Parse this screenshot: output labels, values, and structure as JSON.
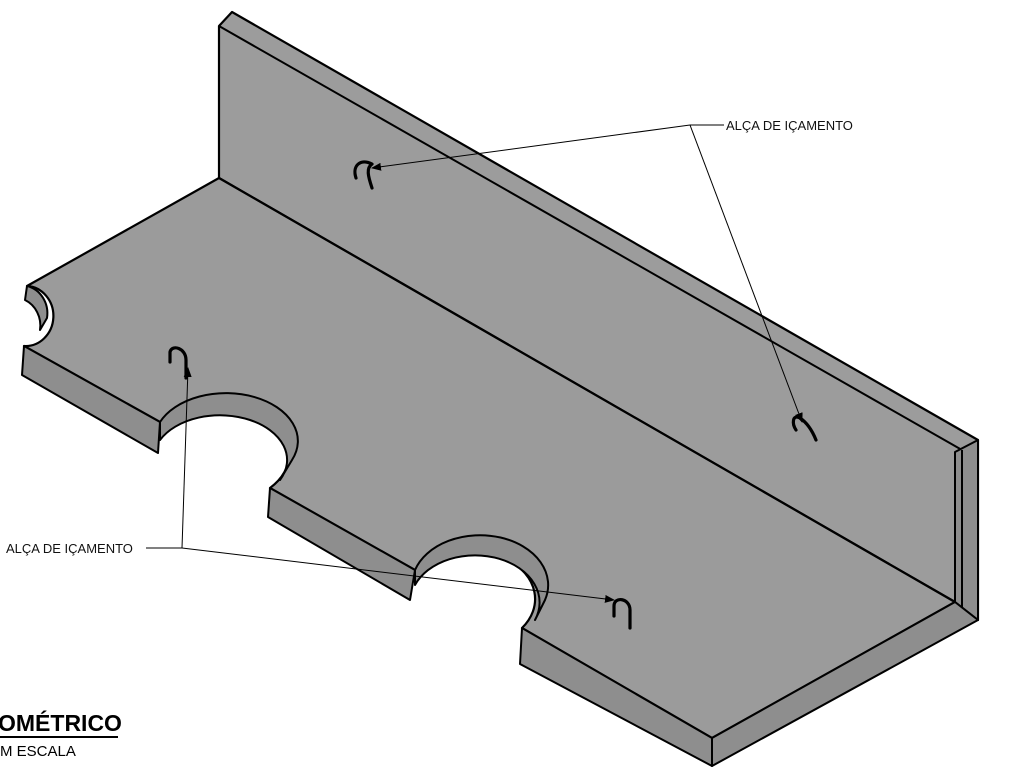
{
  "labels": {
    "lifting_handle_top": "ALÇA DE IÇAMENTO",
    "lifting_handle_left": "ALÇA DE IÇAMENTO"
  },
  "view": {
    "title": "OMÉTRICO",
    "subtitle": "M ESCALA"
  },
  "colors": {
    "steel_face": "#9b9b9b",
    "steel_edge": "#8e8e8e",
    "outline": "#000000",
    "background": "#ffffff"
  },
  "icons": [
    "lifting-hook-icon",
    "arrowhead-icon"
  ]
}
